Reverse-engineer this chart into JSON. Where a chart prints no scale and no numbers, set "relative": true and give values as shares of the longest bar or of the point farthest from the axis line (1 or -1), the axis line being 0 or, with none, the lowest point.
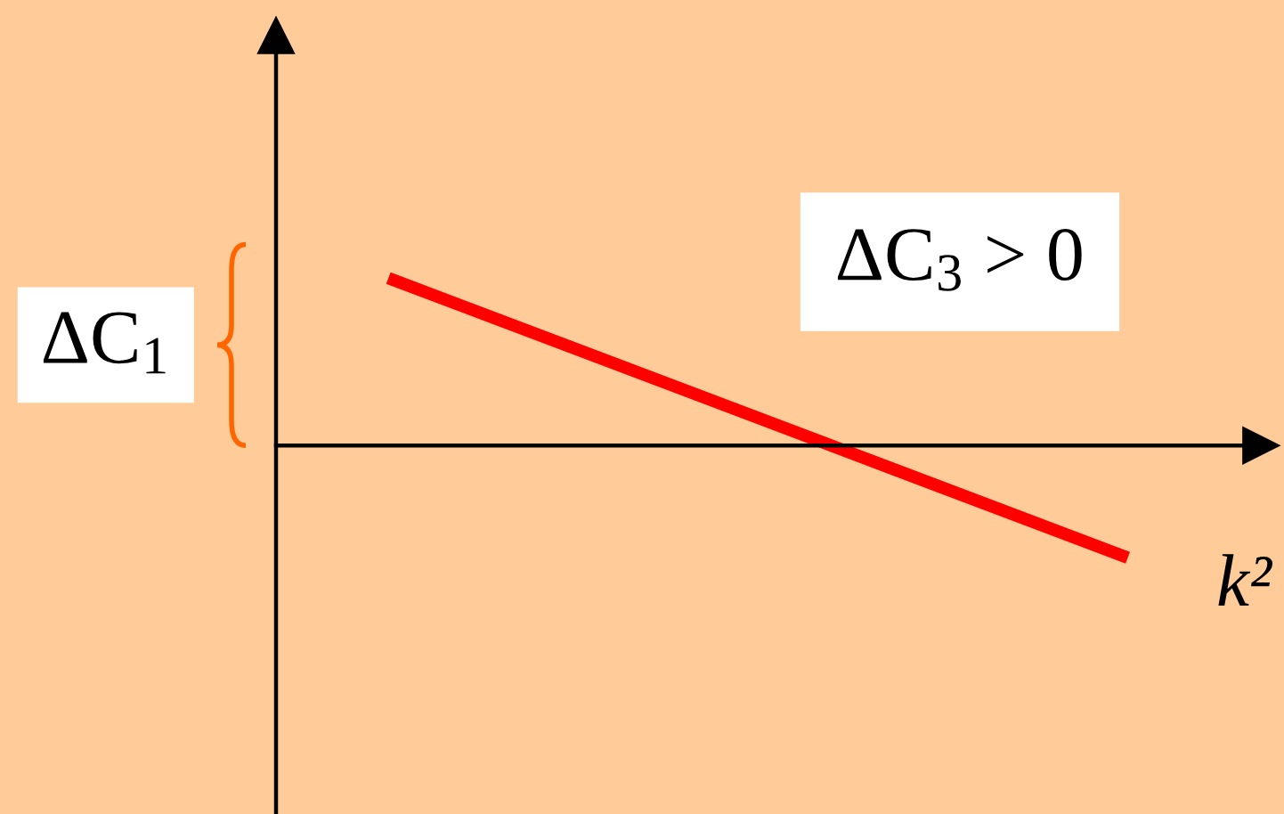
{
  "chart_data": {
    "type": "line",
    "relative": true,
    "categories": [
      null,
      null
    ],
    "xlabel": "k²",
    "series": [
      {
        "color": "#ff0000",
        "values": [
          1,
          -0.67
        ]
      }
    ],
    "annotations": [
      "ΔC$_{1}$",
      "ΔC$_{3}$ > 0"
    ]
  }
}
